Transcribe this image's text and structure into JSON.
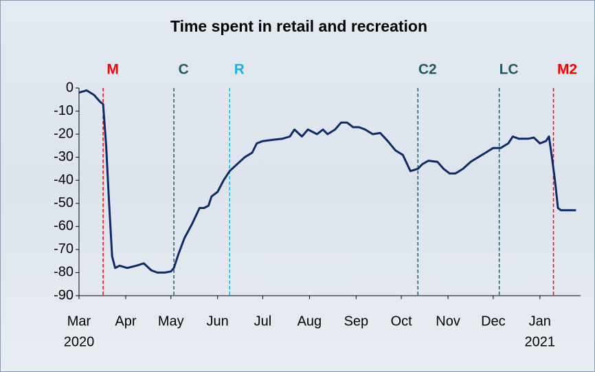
{
  "chart_data": {
    "type": "line",
    "title": "Time spent in retail and recreation",
    "x": [
      0,
      5,
      10,
      14,
      16,
      18,
      20,
      22,
      24,
      27,
      32,
      38,
      43,
      48,
      52,
      57,
      61,
      63,
      66,
      70,
      75,
      80,
      83,
      86,
      88,
      92,
      96,
      100,
      105,
      110,
      115,
      118,
      122,
      128,
      135,
      140,
      143,
      148,
      152,
      158,
      162,
      165,
      170,
      174,
      178,
      182,
      186,
      190,
      195,
      200,
      205,
      210,
      215,
      220,
      225,
      228,
      232,
      238,
      242,
      246,
      250,
      255,
      260,
      265,
      270,
      275,
      280,
      285,
      288,
      292,
      298,
      302,
      306,
      310,
      312,
      314,
      316,
      318,
      320,
      325,
      330
    ],
    "series": [
      {
        "name": "Retail and recreation",
        "color": "#0d2a6b",
        "values": [
          -2,
          -1,
          -3,
          -6,
          -7,
          -25,
          -50,
          -73,
          -78,
          -77,
          -78,
          -77,
          -76,
          -79,
          -80,
          -80,
          -79.5,
          -78,
          -72,
          -65,
          -59,
          -52,
          -52,
          -51,
          -47,
          -45,
          -40,
          -36,
          -33,
          -30,
          -28,
          -24,
          -23,
          -22.5,
          -22,
          -21,
          -18,
          -21,
          -18,
          -20,
          -18,
          -20,
          -18,
          -15,
          -15,
          -17,
          -17,
          -18,
          -20,
          -19.5,
          -23,
          -27,
          -29,
          -36,
          -35,
          -33,
          -31.5,
          -32,
          -35,
          -37,
          -37,
          -35,
          -32,
          -30,
          -28,
          -26,
          -26,
          -24,
          -21,
          -22,
          -22,
          -21.5,
          -24,
          -23,
          -21,
          -30,
          -40,
          -52,
          -53,
          -53,
          -53
        ]
      }
    ],
    "xlim": [
      0,
      333
    ],
    "xticks": [
      {
        "value": 0,
        "label": "Mar"
      },
      {
        "value": 31,
        "label": "Apr"
      },
      {
        "value": 61,
        "label": "May"
      },
      {
        "value": 92,
        "label": "Jun"
      },
      {
        "value": 122,
        "label": "Jul"
      },
      {
        "value": 153,
        "label": "Aug"
      },
      {
        "value": 184,
        "label": "Sep"
      },
      {
        "value": 214,
        "label": "Oct"
      },
      {
        "value": 245,
        "label": "Nov"
      },
      {
        "value": 275,
        "label": "Dec"
      },
      {
        "value": 306,
        "label": "Jan"
      }
    ],
    "year_labels": [
      {
        "value": 0,
        "label": "2020"
      },
      {
        "value": 306,
        "label": "2021"
      }
    ],
    "ylim": [
      -90,
      0
    ],
    "yticks": [
      0,
      -10,
      -20,
      -30,
      -40,
      -50,
      -60,
      -70,
      -80,
      -90
    ],
    "events": [
      {
        "label": "M",
        "x": 16,
        "color": "#ff0000"
      },
      {
        "label": "C",
        "x": 63,
        "color": "#215968"
      },
      {
        "label": "R",
        "x": 100,
        "color": "#1fb0e8"
      },
      {
        "label": "C2",
        "x": 225,
        "color": "#215968"
      },
      {
        "label": "LC",
        "x": 279,
        "color": "#215968"
      },
      {
        "label": "M2",
        "x": 315,
        "color": "#ff0000"
      }
    ]
  }
}
